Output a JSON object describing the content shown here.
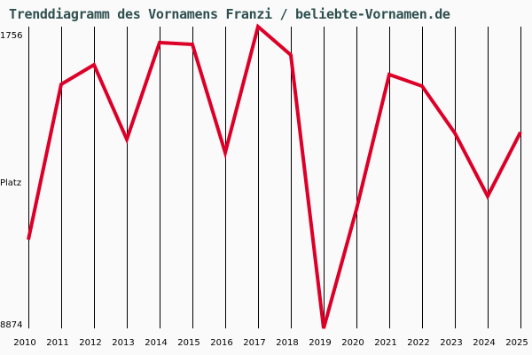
{
  "title": "Trenddiagramm des Vornamens Franzi / beliebte-Vornamen.de",
  "y_axis": {
    "top_label": "1756",
    "middle_label": "Platz",
    "bottom_label": "8874"
  },
  "colors": {
    "background": "#fafafa",
    "title": "#2f4f4f",
    "line": "#dc0028",
    "grid": "#000000"
  },
  "chart_data": {
    "type": "line",
    "title": "Trenddiagramm des Vornamens Franzi / beliebte-Vornamen.de",
    "xlabel": "",
    "ylabel": "Platz",
    "y_inverted": true,
    "ylim": [
      1756,
      8874
    ],
    "grid": "vertical",
    "categories": [
      "2010",
      "2011",
      "2012",
      "2013",
      "2014",
      "2015",
      "2016",
      "2017",
      "2018",
      "2019",
      "2020",
      "2021",
      "2022",
      "2023",
      "2024",
      "2025"
    ],
    "series": [
      {
        "name": "Franzi",
        "values": [
          6780,
          3117,
          2656,
          4415,
          2133,
          2175,
          4729,
          1756,
          2426,
          8874,
          6069,
          2887,
          3159,
          4269,
          5756,
          4248
        ]
      }
    ]
  }
}
